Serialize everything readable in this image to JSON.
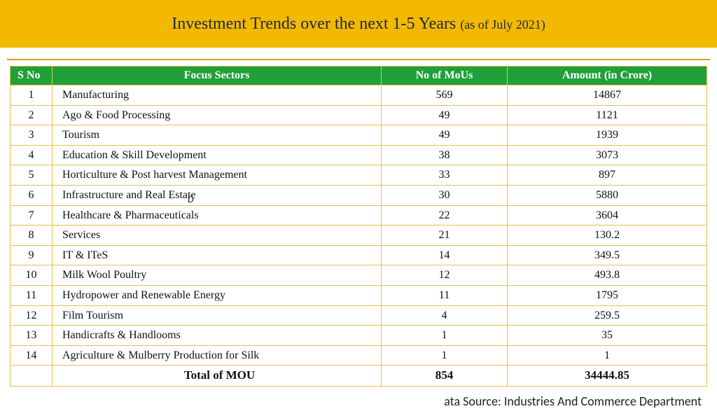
{
  "header": {
    "title_main": "Investment Trends over the next 1-5 Years ",
    "title_sub": "(as of July 2021)"
  },
  "table": {
    "columns": [
      "S No",
      "Focus Sectors",
      "No of MoUs",
      "Amount (in Crore)"
    ],
    "rows": [
      {
        "sno": "1",
        "sector": "Manufacturing",
        "mou": "569",
        "amt": "14867"
      },
      {
        "sno": "2",
        "sector": "Ago & Food Processing",
        "mou": "49",
        "amt": "1121"
      },
      {
        "sno": "3",
        "sector": "Tourism",
        "mou": "49",
        "amt": "1939"
      },
      {
        "sno": "4",
        "sector": "Education & Skill Development",
        "mou": "38",
        "amt": "3073"
      },
      {
        "sno": "5",
        "sector": "Horticulture & Post harvest Management",
        "mou": "33",
        "amt": "897"
      },
      {
        "sno": "6",
        "sector": "Infrastructure and Real Estate",
        "mou": "30",
        "amt": "5880"
      },
      {
        "sno": "7",
        "sector": "Healthcare & Pharmaceuticals",
        "mou": "22",
        "amt": "3604"
      },
      {
        "sno": "8",
        "sector": "Services",
        "mou": "21",
        "amt": "130.2"
      },
      {
        "sno": "9",
        "sector": "IT & ITeS",
        "mou": "14",
        "amt": "349.5"
      },
      {
        "sno": "10",
        "sector": "Milk Wool Poultry",
        "mou": "12",
        "amt": "493.8"
      },
      {
        "sno": "11",
        "sector": "Hydropower and Renewable Energy",
        "mou": "11",
        "amt": "1795"
      },
      {
        "sno": "12",
        "sector": "Film Tourism",
        "mou": "4",
        "amt": "259.5"
      },
      {
        "sno": "13",
        "sector": "Handicrafts & Handlooms",
        "mou": "1",
        "amt": "35"
      },
      {
        "sno": "14",
        "sector": "Agriculture & Mulberry Production for Silk",
        "mou": "1",
        "amt": "1"
      }
    ],
    "total": {
      "label": "Total of MOU",
      "mou": "854",
      "amt": "34444.85"
    }
  },
  "footer": {
    "text": "ata Source: Industries And Commerce Department"
  },
  "stray": {
    "text": "D"
  },
  "colors": {
    "band": "#f3b800",
    "header_row": "#1fa038",
    "border": "#e6c24a"
  }
}
